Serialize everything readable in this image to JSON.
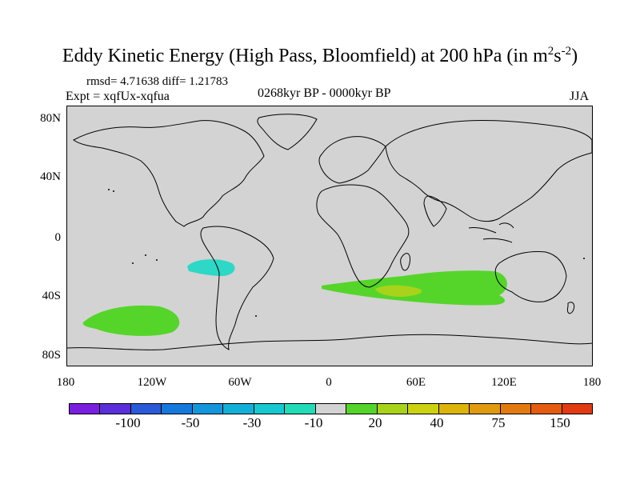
{
  "title": {
    "main": "Eddy Kinetic Energy (High Pass, Bloomfield) at 200 hPa (in m",
    "sup1": "2",
    "mid": "s",
    "sup2": "-2",
    "close": ")"
  },
  "stats": "rmsd= 4.71638 diff= 1.21783",
  "expt": "Expt = xqfUx-xqfua",
  "period": "0268kyr BP - 0000kyr BP",
  "season": "JJA",
  "map": {
    "background_color": "#d3d3d3",
    "y_labels": [
      "80N",
      "40N",
      "0",
      "40S",
      "80S"
    ],
    "x_labels": [
      "180",
      "120W",
      "60W",
      "0",
      "60E",
      "120E",
      "180"
    ],
    "anomaly_regions": [
      {
        "name": "south-pacific-positive",
        "value_band": "10 to 20",
        "color": "#55d52a"
      },
      {
        "name": "southeast-pacific-negative",
        "value_band": "-20 to -10",
        "color": "#2dd8c6"
      },
      {
        "name": "southern-indian-positive",
        "value_band": "10 to 20",
        "color": "#55d52a"
      },
      {
        "name": "southern-indian-core",
        "value_band": "20 to 30",
        "color": "#a8d31a"
      }
    ]
  },
  "colorbar": {
    "colors": [
      "#7a1ee0",
      "#5a2ed8",
      "#2a5ad8",
      "#1478dc",
      "#1496dc",
      "#12b0d8",
      "#17c8d0",
      "#22dcb8",
      "#d3d3d3",
      "#55d52a",
      "#a8d31a",
      "#cdd210",
      "#dcb40c",
      "#e09a0e",
      "#e27a10",
      "#e45c10",
      "#e23a12"
    ],
    "labels": [
      "-100",
      "-50",
      "-30",
      "-10",
      "20",
      "40",
      "75",
      "150"
    ]
  }
}
